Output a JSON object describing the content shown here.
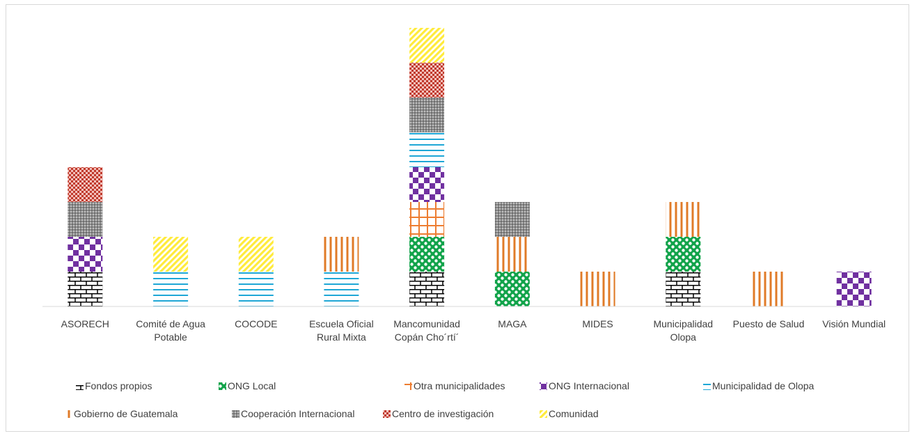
{
  "chart_data": {
    "type": "bar",
    "stacked": true,
    "categories": [
      [
        "ASORECH"
      ],
      [
        "Comité de Agua",
        "Potable"
      ],
      [
        "COCODE"
      ],
      [
        "Escuela Oficial",
        "Rural Mixta"
      ],
      [
        "Mancomunidad",
        "Copán Cho´rtí´"
      ],
      [
        "MAGA"
      ],
      [
        "MIDES"
      ],
      [
        "Municipalidad",
        "Olopa"
      ],
      [
        "Puesto de Salud"
      ],
      [
        "Visión Mundial"
      ]
    ],
    "series": [
      {
        "name": "Fondos propios",
        "pattern": "brick",
        "values": [
          1,
          0,
          0,
          0,
          1,
          0,
          0,
          1,
          0,
          0
        ]
      },
      {
        "name": "ONG Local",
        "pattern": "greendots",
        "values": [
          0,
          0,
          0,
          0,
          1,
          1,
          0,
          1,
          0,
          0
        ]
      },
      {
        "name": "Otra municipalidades",
        "pattern": "orangegrid",
        "values": [
          0,
          0,
          0,
          0,
          1,
          0,
          0,
          0,
          0,
          0
        ]
      },
      {
        "name": "ONG Internacional",
        "pattern": "purplecheck",
        "values": [
          1,
          0,
          0,
          0,
          1,
          0,
          0,
          0,
          0,
          1
        ]
      },
      {
        "name": "Municipalidad de Olopa",
        "pattern": "bluehlines",
        "values": [
          0,
          1,
          1,
          1,
          1,
          0,
          0,
          0,
          0,
          0
        ]
      },
      {
        "name": "Gobierno de Guatemala",
        "pattern": "orangevlines",
        "values": [
          0,
          0,
          0,
          1,
          0,
          1,
          1,
          1,
          1,
          0
        ]
      },
      {
        "name": "Cooperación Internacional",
        "pattern": "graycross",
        "values": [
          1,
          0,
          0,
          0,
          1,
          1,
          0,
          0,
          0,
          0
        ]
      },
      {
        "name": "Centro de investigación",
        "pattern": "redcheck",
        "values": [
          1,
          0,
          0,
          0,
          1,
          0,
          0,
          0,
          0,
          0
        ]
      },
      {
        "name": "Comunidad",
        "pattern": "yellowdiag",
        "values": [
          0,
          1,
          1,
          0,
          1,
          0,
          0,
          0,
          0,
          0
        ]
      }
    ],
    "ylim": [
      0,
      8
    ],
    "grid": false,
    "legend_position": "bottom",
    "title": "",
    "xlabel": "",
    "ylabel": ""
  }
}
